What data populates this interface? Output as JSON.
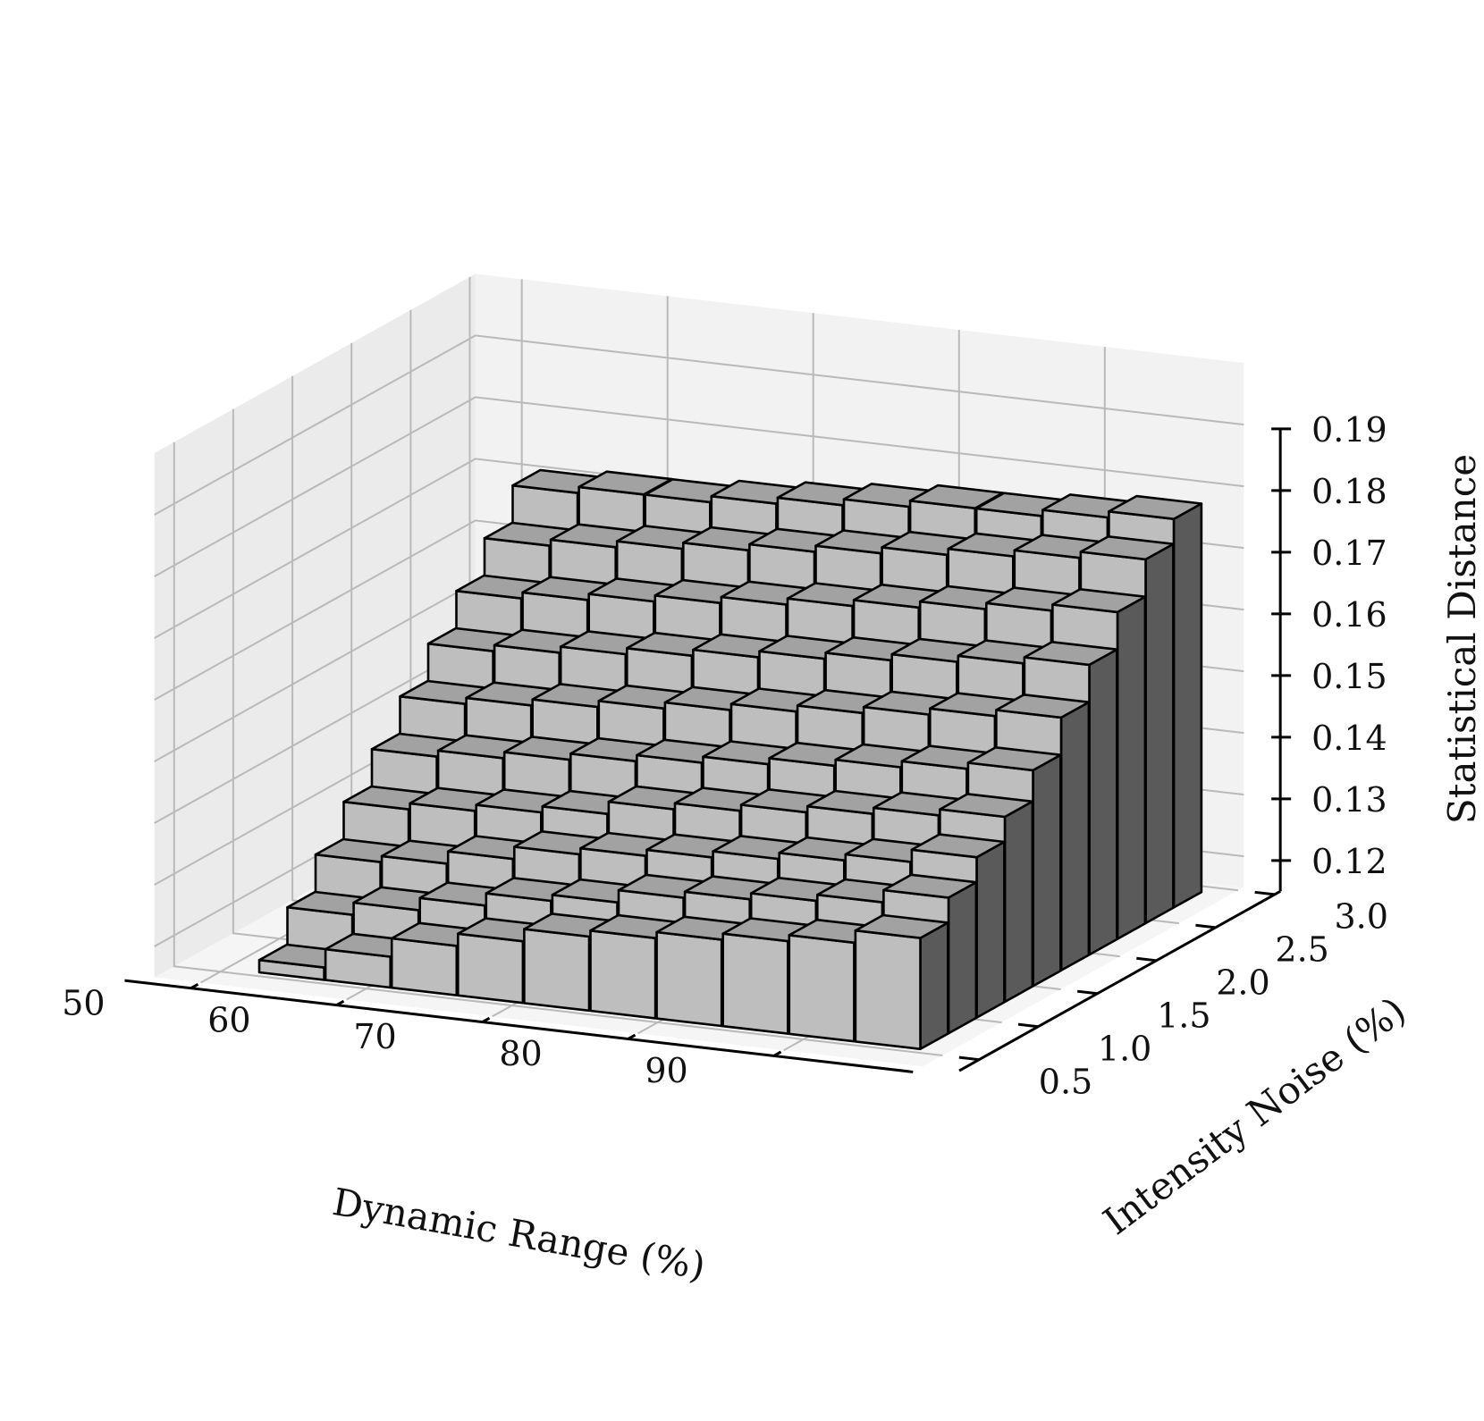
{
  "chart_data": {
    "type": "bar3d",
    "title": "",
    "xlabel": "Dynamic Range (%)",
    "ylabel": "Intensity Noise (%)",
    "zlabel": "Statistical Distance",
    "x_tick_labels": [
      "50",
      "60",
      "70",
      "80",
      "90"
    ],
    "y_tick_labels": [
      "0.5",
      "1.0",
      "1.5",
      "2.0",
      "2.5",
      "3.0"
    ],
    "z_tick_labels": [
      "0.12",
      "0.13",
      "0.14",
      "0.15",
      "0.16",
      "0.17",
      "0.18",
      "0.19"
    ],
    "dynamic_range": [
      50,
      55,
      60,
      65,
      70,
      75,
      80,
      85,
      90,
      95
    ],
    "intensity_noise": [
      0.5,
      0.75,
      1.0,
      1.25,
      1.5,
      1.75,
      2.0,
      2.25,
      2.5,
      2.75
    ],
    "zlim": [
      0.115,
      0.19
    ],
    "values": [
      [
        0.117,
        0.12,
        0.123,
        0.125,
        0.127,
        0.128,
        0.129,
        0.13,
        0.131,
        0.133
      ],
      [
        0.123,
        0.125,
        0.127,
        0.129,
        0.13,
        0.132,
        0.133,
        0.134,
        0.135,
        0.137
      ],
      [
        0.129,
        0.13,
        0.132,
        0.134,
        0.135,
        0.136,
        0.137,
        0.138,
        0.139,
        0.141
      ],
      [
        0.135,
        0.136,
        0.137,
        0.138,
        0.14,
        0.141,
        0.142,
        0.143,
        0.144,
        0.145
      ],
      [
        0.141,
        0.142,
        0.143,
        0.144,
        0.145,
        0.146,
        0.147,
        0.148,
        0.149,
        0.15
      ],
      [
        0.147,
        0.148,
        0.149,
        0.15,
        0.151,
        0.152,
        0.153,
        0.154,
        0.155,
        0.156
      ],
      [
        0.153,
        0.154,
        0.155,
        0.156,
        0.157,
        0.158,
        0.159,
        0.16,
        0.161,
        0.162
      ],
      [
        0.159,
        0.16,
        0.161,
        0.162,
        0.163,
        0.164,
        0.165,
        0.166,
        0.167,
        0.168
      ],
      [
        0.165,
        0.166,
        0.167,
        0.168,
        0.169,
        0.17,
        0.171,
        0.172,
        0.173,
        0.174
      ],
      [
        0.171,
        0.172,
        0.172,
        0.173,
        0.174,
        0.175,
        0.176,
        0.176,
        0.177,
        0.178
      ]
    ],
    "grid": true,
    "colors": {
      "bar_front": "#bebebe",
      "bar_top": "#a2a2a2",
      "bar_side": "#5a5a5a",
      "bar_edge": "#000000",
      "pane_back": "#f2f2f2",
      "pane_left": "#ebebeb",
      "pane_floor": "#f5f5f5",
      "grid": "#b9b9b9",
      "axis": "#000000"
    }
  }
}
